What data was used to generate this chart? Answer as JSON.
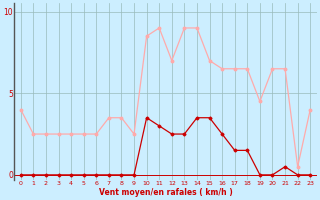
{
  "hours": [
    0,
    1,
    2,
    3,
    4,
    5,
    6,
    7,
    8,
    9,
    10,
    11,
    12,
    13,
    14,
    15,
    16,
    17,
    18,
    19,
    20,
    21,
    22,
    23
  ],
  "rafales": [
    4.0,
    2.5,
    2.5,
    2.5,
    2.5,
    2.5,
    2.5,
    3.5,
    3.5,
    2.5,
    8.5,
    9.0,
    7.0,
    9.0,
    9.0,
    7.0,
    6.5,
    6.5,
    6.5,
    4.5,
    6.5,
    6.5,
    0.5,
    4.0
  ],
  "moyen": [
    0.0,
    0.0,
    0.0,
    0.0,
    0.0,
    0.0,
    0.0,
    0.0,
    0.0,
    0.0,
    3.5,
    3.0,
    2.5,
    2.5,
    3.5,
    3.5,
    2.5,
    1.5,
    1.5,
    0.0,
    0.0,
    0.5,
    0.0,
    0.0
  ],
  "color_rafales": "#ffaaaa",
  "color_moyen": "#cc0000",
  "bg_color": "#cceeff",
  "grid_color": "#99bbbb",
  "xlabel": "Vent moyen/en rafales ( km/h )",
  "ylim": [
    -0.3,
    10.5
  ],
  "yticks": [
    0,
    5,
    10
  ],
  "xlim": [
    -0.5,
    23.5
  ]
}
